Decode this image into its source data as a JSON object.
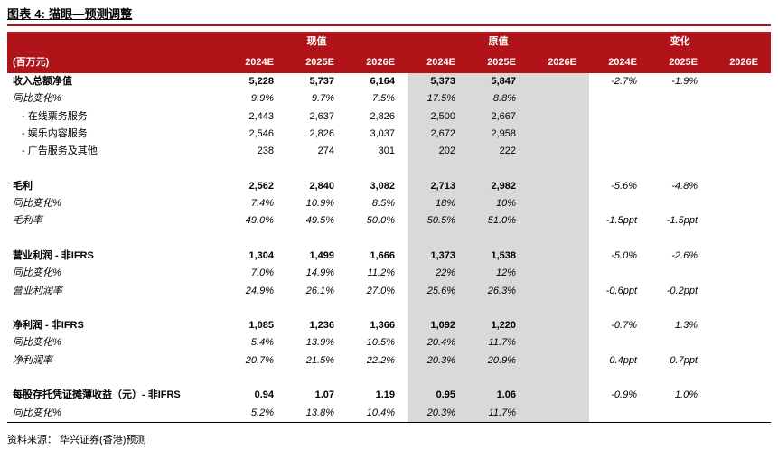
{
  "title": "图表 4: 猫眼—预测调整",
  "source": "资料来源： 华兴证券(香港)预测",
  "colors": {
    "header_red": "#B01318",
    "shaded_gray": "#D9D9D9"
  },
  "table": {
    "unit_label": "(百万元)",
    "groups": [
      {
        "label": "现值"
      },
      {
        "label": "原值"
      },
      {
        "label": "变化"
      }
    ],
    "year_headers": [
      "2024E",
      "2025E",
      "2026E",
      "2024E",
      "2025E",
      "2026E",
      "2024E",
      "2025E",
      "2026E"
    ],
    "rows": [
      {
        "label": "收入总额净值",
        "style": "bold",
        "cells": [
          "5,228",
          "5,737",
          "6,164",
          "5,373",
          "5,847",
          "",
          "-2.7%",
          "-1.9%",
          ""
        ]
      },
      {
        "label": "同比变化%",
        "style": "italic",
        "cells": [
          "9.9%",
          "9.7%",
          "7.5%",
          "17.5%",
          "8.8%",
          "",
          "",
          "",
          ""
        ]
      },
      {
        "label": "- 在线票务服务",
        "style": "sub",
        "cells": [
          "2,443",
          "2,637",
          "2,826",
          "2,500",
          "2,667",
          "",
          "",
          "",
          ""
        ]
      },
      {
        "label": "- 娱乐内容服务",
        "style": "sub",
        "cells": [
          "2,546",
          "2,826",
          "3,037",
          "2,672",
          "2,958",
          "",
          "",
          "",
          ""
        ]
      },
      {
        "label": "- 广告服务及其他",
        "style": "sub",
        "cells": [
          "238",
          "274",
          "301",
          "202",
          "222",
          "",
          "",
          "",
          ""
        ]
      },
      {
        "label": "",
        "style": "blank",
        "cells": [
          "",
          "",
          "",
          "",
          "",
          "",
          "",
          "",
          ""
        ]
      },
      {
        "label": "毛利",
        "style": "bold",
        "cells": [
          "2,562",
          "2,840",
          "3,082",
          "2,713",
          "2,982",
          "",
          "-5.6%",
          "-4.8%",
          ""
        ]
      },
      {
        "label": "同比变化%",
        "style": "italic",
        "cells": [
          "7.4%",
          "10.9%",
          "8.5%",
          "18%",
          "10%",
          "",
          "",
          "",
          ""
        ]
      },
      {
        "label": "毛利率",
        "style": "italic",
        "cells": [
          "49.0%",
          "49.5%",
          "50.0%",
          "50.5%",
          "51.0%",
          "",
          "-1.5ppt",
          "-1.5ppt",
          ""
        ]
      },
      {
        "label": "",
        "style": "blank",
        "cells": [
          "",
          "",
          "",
          "",
          "",
          "",
          "",
          "",
          ""
        ]
      },
      {
        "label": "营业利润 - 非IFRS",
        "style": "bold",
        "cells": [
          "1,304",
          "1,499",
          "1,666",
          "1,373",
          "1,538",
          "",
          "-5.0%",
          "-2.6%",
          ""
        ]
      },
      {
        "label": "同比变化%",
        "style": "italic",
        "cells": [
          "7.0%",
          "14.9%",
          "11.2%",
          "22%",
          "12%",
          "",
          "",
          "",
          ""
        ]
      },
      {
        "label": "营业利润率",
        "style": "italic",
        "cells": [
          "24.9%",
          "26.1%",
          "27.0%",
          "25.6%",
          "26.3%",
          "",
          "-0.6ppt",
          "-0.2ppt",
          ""
        ]
      },
      {
        "label": "",
        "style": "blank",
        "cells": [
          "",
          "",
          "",
          "",
          "",
          "",
          "",
          "",
          ""
        ]
      },
      {
        "label": "净利润 - 非IFRS",
        "style": "bold",
        "cells": [
          "1,085",
          "1,236",
          "1,366",
          "1,092",
          "1,220",
          "",
          "-0.7%",
          "1.3%",
          ""
        ]
      },
      {
        "label": "同比变化%",
        "style": "italic",
        "cells": [
          "5.4%",
          "13.9%",
          "10.5%",
          "20.4%",
          "11.7%",
          "",
          "",
          "",
          ""
        ]
      },
      {
        "label": "净利润率",
        "style": "italic",
        "cells": [
          "20.7%",
          "21.5%",
          "22.2%",
          "20.3%",
          "20.9%",
          "",
          "0.4ppt",
          "0.7ppt",
          ""
        ]
      },
      {
        "label": "",
        "style": "blank",
        "cells": [
          "",
          "",
          "",
          "",
          "",
          "",
          "",
          "",
          ""
        ]
      },
      {
        "label": "每股存托凭证摊薄收益（元）- 非IFRS",
        "style": "bold",
        "cells": [
          "0.94",
          "1.07",
          "1.19",
          "0.95",
          "1.06",
          "",
          "-0.9%",
          "1.0%",
          ""
        ]
      },
      {
        "label": "同比变化%",
        "style": "italic",
        "cells": [
          "5.2%",
          "13.8%",
          "10.4%",
          "20.3%",
          "11.7%",
          "",
          "",
          "",
          ""
        ]
      }
    ]
  }
}
